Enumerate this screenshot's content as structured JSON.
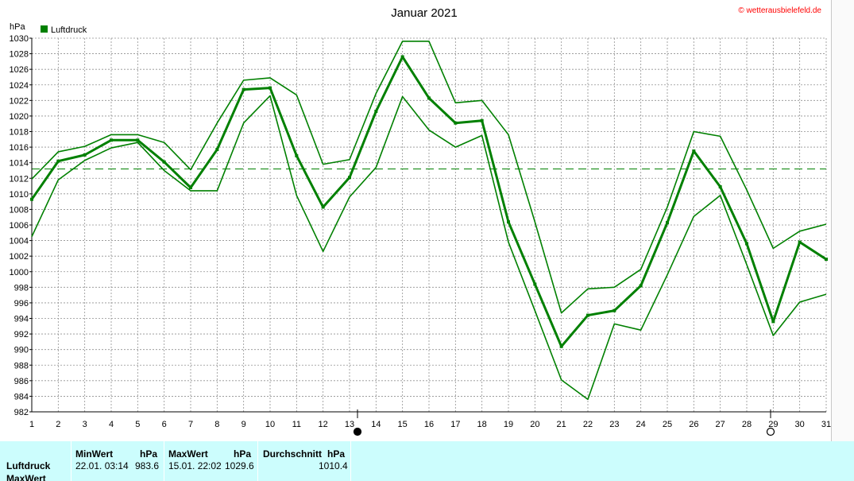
{
  "chart_data": {
    "type": "line",
    "title": "Januar 2021",
    "ylabel": "hPa",
    "ylim": [
      982,
      1030
    ],
    "ytick_step": 2,
    "x": [
      1,
      2,
      3,
      4,
      5,
      6,
      7,
      8,
      9,
      10,
      11,
      12,
      13,
      14,
      15,
      16,
      17,
      18,
      19,
      20,
      21,
      22,
      23,
      24,
      25,
      26,
      27,
      28,
      29,
      30,
      31
    ],
    "xlim": [
      1,
      31
    ],
    "legend": [
      "Luftdruck"
    ],
    "legend_position": "top-left",
    "grid": true,
    "reference_line": 1013.2,
    "series": [
      {
        "name": "Luftdruck",
        "role": "mean",
        "values": [
          1009.3,
          1014.2,
          1015.0,
          1016.9,
          1016.9,
          1014.1,
          1010.8,
          1015.7,
          1023.4,
          1023.6,
          1014.9,
          1008.3,
          1012.1,
          1020.6,
          1027.6,
          1022.3,
          1019.1,
          1019.4,
          1006.4,
          998.4,
          990.4,
          994.4,
          995.0,
          998.2,
          1006.3,
          1015.5,
          1010.9,
          1003.6,
          993.6,
          1003.8,
          1001.6
        ]
      },
      {
        "role": "max",
        "values": [
          1011.9,
          1015.4,
          1016.1,
          1017.6,
          1017.6,
          1016.6,
          1013.1,
          1019.1,
          1024.6,
          1024.9,
          1022.7,
          1013.8,
          1014.4,
          1022.9,
          1029.6,
          1029.6,
          1021.7,
          1022.0,
          1017.6,
          1006.4,
          994.7,
          997.8,
          998.0,
          1000.3,
          1008.3,
          1018.0,
          1017.4,
          1010.5,
          1003.0,
          1005.2,
          1006.1
        ]
      },
      {
        "role": "min",
        "values": [
          1004.5,
          1011.8,
          1014.3,
          1015.9,
          1016.6,
          1013.0,
          1010.4,
          1010.4,
          1019.1,
          1022.6,
          1009.8,
          1002.6,
          1009.6,
          1013.4,
          1022.5,
          1018.2,
          1016.0,
          1017.5,
          1003.8,
          995.0,
          986.1,
          983.6,
          993.3,
          992.5,
          999.6,
          1007.1,
          1009.8,
          1000.9,
          991.8,
          996.1,
          997.1
        ]
      }
    ],
    "moon_phases": [
      {
        "day": 13.3,
        "phase": "new"
      },
      {
        "day": 28.9,
        "phase": "full"
      }
    ]
  },
  "copyright": "© wetterausbielefeld.de",
  "colors": {
    "line": "#008000",
    "grid": "#909090",
    "reference": "#008000",
    "copyright": "#ff0000",
    "stats_bg": "#ccfdfd"
  },
  "stats": {
    "rows": [
      "Luftdruck",
      "MaxWert"
    ],
    "min_header": "MinWert",
    "min_unit": "hPa",
    "min_date": "22.01.  03:14",
    "min_value": "983.6",
    "max_header": "MaxWert",
    "max_unit": "hPa",
    "max_date": "15.01.  22:02",
    "max_value": "1029.6",
    "avg_header": "Durchschnitt",
    "avg_unit": "hPa",
    "avg_value": "1010.4"
  }
}
